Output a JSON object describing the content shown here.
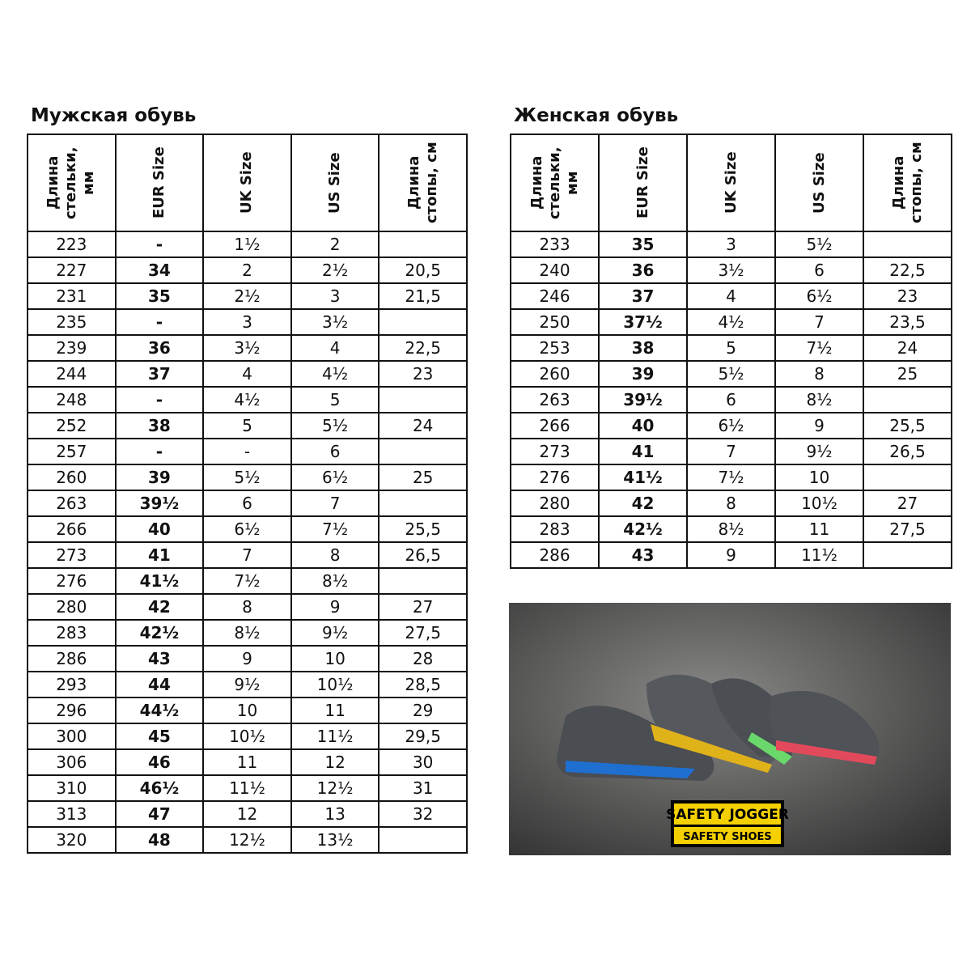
{
  "men": {
    "title": "Мужская обувь",
    "headers": [
      "Длина стельки, мм",
      "EUR Size",
      "UK Size",
      "US Size",
      "Длина стопы, см"
    ],
    "rows": [
      [
        "223",
        "-",
        "1½",
        "2",
        null
      ],
      [
        "227",
        "34",
        "2",
        "2½",
        "20,5"
      ],
      [
        "231",
        "35",
        "2½",
        "3",
        "21,5"
      ],
      [
        "235",
        "-",
        "3",
        "3½",
        null
      ],
      [
        "239",
        "36",
        "3½",
        "4",
        "22,5"
      ],
      [
        "244",
        "37",
        "4",
        "4½",
        "23"
      ],
      [
        "248",
        "-",
        "4½",
        "5",
        null
      ],
      [
        "252",
        "38",
        "5",
        "5½",
        "24"
      ],
      [
        "257",
        "-",
        "-",
        "6",
        null
      ],
      [
        "260",
        "39",
        "5½",
        "6½",
        "25"
      ],
      [
        "263",
        "39½",
        "6",
        "7",
        null
      ],
      [
        "266",
        "40",
        "6½",
        "7½",
        "25,5"
      ],
      [
        "273",
        "41",
        "7",
        "8",
        "26,5"
      ],
      [
        "276",
        "41½",
        "7½",
        "8½",
        null
      ],
      [
        "280",
        "42",
        "8",
        "9",
        "27"
      ],
      [
        "283",
        "42½",
        "8½",
        "9½",
        "27,5"
      ],
      [
        "286",
        "43",
        "9",
        "10",
        "28"
      ],
      [
        "293",
        "44",
        "9½",
        "10½",
        "28,5"
      ],
      [
        "296",
        "44½",
        "10",
        "11",
        "29"
      ],
      [
        "300",
        "45",
        "10½",
        "11½",
        "29,5"
      ],
      [
        "306",
        "46",
        "11",
        "12",
        "30"
      ],
      [
        "310",
        "46½",
        "11½",
        "12½",
        "31"
      ],
      [
        "313",
        "47",
        "12",
        "13",
        "32"
      ],
      [
        "320",
        "48",
        "12½",
        "13½",
        null
      ]
    ]
  },
  "women": {
    "title": "Женская обувь",
    "headers": [
      "Длина стельки, мм",
      "EUR Size",
      "UK Size",
      "US Size",
      "Длина стопы, см"
    ],
    "rows": [
      [
        "233",
        "35",
        "3",
        "5½",
        null
      ],
      [
        "240",
        "36",
        "3½",
        "6",
        "22,5"
      ],
      [
        "246",
        "37",
        "4",
        "6½",
        "23"
      ],
      [
        "250",
        "37½",
        "4½",
        "7",
        "23,5"
      ],
      [
        "253",
        "38",
        "5",
        "7½",
        "24"
      ],
      [
        "260",
        "39",
        "5½",
        "8",
        "25"
      ],
      [
        "263",
        "39½",
        "6",
        "8½",
        null
      ],
      [
        "266",
        "40",
        "6½",
        "9",
        "25,5"
      ],
      [
        "273",
        "41",
        "7",
        "9½",
        "26,5"
      ],
      [
        "276",
        "41½",
        "7½",
        "10",
        null
      ],
      [
        "280",
        "42",
        "8",
        "10½",
        "27"
      ],
      [
        "283",
        "42½",
        "8½",
        "11",
        "27,5"
      ],
      [
        "286",
        "43",
        "9",
        "11½",
        null
      ]
    ]
  },
  "photo": {
    "logo_top": "SAFETY JOGGER",
    "logo_bottom": "SAFETY SHOES"
  }
}
